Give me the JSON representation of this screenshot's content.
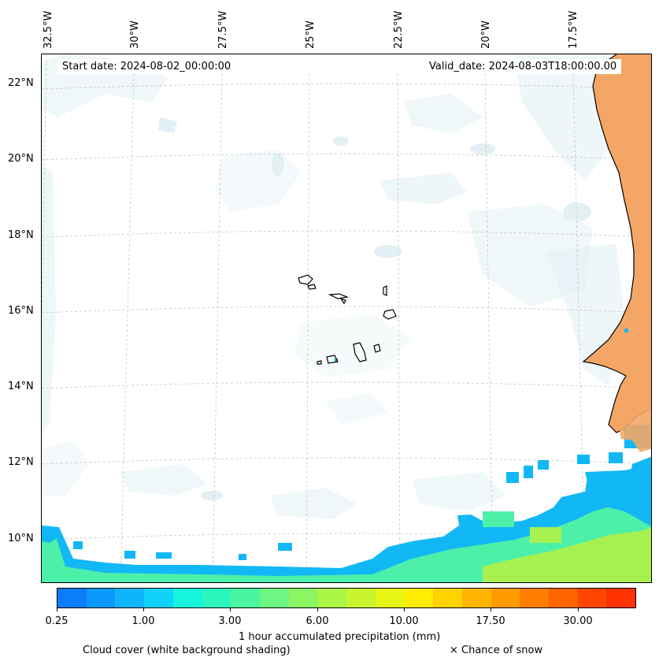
{
  "map": {
    "lon_labels": [
      "32.5°W",
      "30°W",
      "27.5°W",
      "25°W",
      "22.5°W",
      "20°W",
      "17.5°W"
    ],
    "lat_labels": [
      "22°N",
      "20°N",
      "18°N",
      "16°N",
      "14°N",
      "12°N",
      "10°N"
    ],
    "start_date": "Start date: 2024-08-02_00:00:00",
    "valid_date": "Valid_date: 2024-08-03T18:00:00.00"
  },
  "colorbar": {
    "colors": [
      "#0a7dfa",
      "#0a99fa",
      "#0fb4fa",
      "#0fd2fa",
      "#14f5dc",
      "#2df5be",
      "#4bf5a0",
      "#6ef582",
      "#8cf564",
      "#aaf546",
      "#c8f52d",
      "#e6f514",
      "#ffed00",
      "#ffd200",
      "#ffb400",
      "#ff9b00",
      "#ff7d00",
      "#ff6400",
      "#ff4600",
      "#ff3200"
    ],
    "tick_labels": [
      "0.25",
      "1.00",
      "3.00",
      "6.00",
      "10.00",
      "17.50",
      "30.00"
    ],
    "label": "1 hour accumulated precipitation (mm)"
  },
  "legend": {
    "cloud_cover": "Cloud cover (white background shading)",
    "snow": "× Chance of snow"
  },
  "colors": {
    "land": "#f3a665",
    "cloud": "#d6eaf0",
    "precip_low": "#12b8f5",
    "precip_mid": "#4df0a8",
    "precip_high": "#a8f050"
  }
}
